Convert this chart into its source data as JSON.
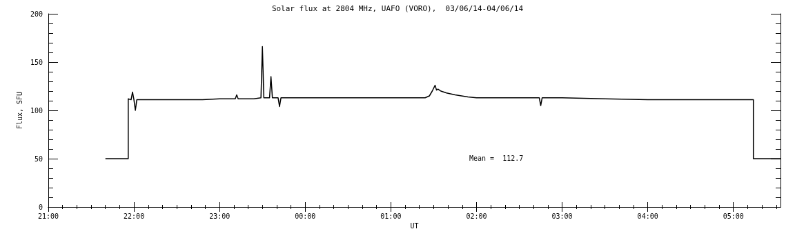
{
  "chart_data": {
    "type": "line",
    "title": "Solar flux at 2804 MHz, UAFO (VORO),  03/06/14-04/06/14",
    "xlabel": "UT",
    "ylabel": "Flux, SFU",
    "annotations": [
      "Mean =  112.7"
    ],
    "xlim": [
      "--06-03T21:00",
      "--06-04T05:33"
    ],
    "xticks": [
      {
        "value": "--06-03T21:00",
        "label": "21:00"
      },
      {
        "value": "--06-03T22:00",
        "label": "22:00"
      },
      {
        "value": "--06-03T23:00",
        "label": "23:00"
      },
      {
        "value": "--06-04T00:00",
        "label": "00:00"
      },
      {
        "value": "--06-04T01:00",
        "label": "01:00"
      },
      {
        "value": "--06-04T02:00",
        "label": "02:00"
      },
      {
        "value": "--06-04T03:00",
        "label": "03:00"
      },
      {
        "value": "--06-04T04:00",
        "label": "04:00"
      },
      {
        "value": "--06-04T05:00",
        "label": "05:00"
      }
    ],
    "ylim": [
      0,
      200
    ],
    "yticks": [
      0,
      50,
      100,
      150,
      200
    ],
    "grid": false,
    "marker": "none",
    "line_style": "solid",
    "series": [
      {
        "color": "#000000",
        "x": [
          "--06-03T21:40",
          "--06-03T21:56",
          "--06-03T21:56",
          "--06-03T21:58",
          "--06-03T21:59",
          "--06-03T22:00",
          "--06-03T22:01",
          "--06-03T22:02",
          "--06-03T22:12",
          "--06-03T22:30",
          "--06-03T22:48",
          "--06-03T23:00",
          "--06-03T23:11",
          "--06-03T23:12",
          "--06-03T23:13",
          "--06-03T23:24",
          "--06-03T23:29",
          "--06-03T23:30",
          "--06-03T23:31",
          "--06-03T23:35",
          "--06-03T23:36",
          "--06-03T23:37",
          "--06-03T23:41",
          "--06-03T23:42",
          "--06-03T23:43",
          "--06-04T00:00",
          "--06-04T00:30",
          "--06-04T01:00",
          "--06-04T01:24",
          "--06-04T01:27",
          "--06-04T01:29",
          "--06-04T01:31",
          "--06-04T01:32",
          "--06-04T01:33",
          "--06-04T01:34",
          "--06-04T01:35",
          "--06-04T01:39",
          "--06-04T01:45",
          "--06-04T01:54",
          "--06-04T02:00",
          "--06-04T02:24",
          "--06-04T02:44",
          "--06-04T02:45",
          "--06-04T02:46",
          "--06-04T03:00",
          "--06-04T03:30",
          "--06-04T04:00",
          "--06-04T04:30",
          "--06-04T05:00",
          "--06-04T05:14",
          "--06-04T05:14",
          "--06-04T05:33"
        ],
        "values": [
          50,
          50,
          112,
          111,
          119,
          111,
          100,
          111,
          111,
          111,
          111,
          112,
          112,
          116,
          112,
          112,
          113,
          166,
          113,
          113,
          135,
          113,
          113,
          104,
          113,
          113,
          113,
          113,
          113,
          115,
          120,
          126,
          121,
          122,
          121,
          120,
          118,
          116,
          114,
          113,
          113,
          113,
          105,
          113,
          113,
          112,
          111,
          111,
          111,
          111,
          50,
          50
        ]
      }
    ]
  }
}
